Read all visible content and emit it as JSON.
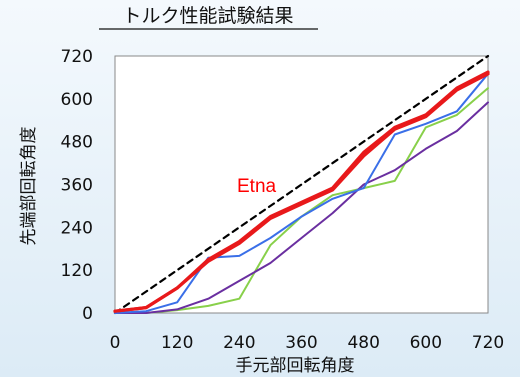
{
  "chart_data": {
    "type": "line",
    "title": "トルク性能試験結果",
    "xlabel": "手元部回転角度",
    "ylabel": "先端部回転角度",
    "xlim": [
      0,
      720
    ],
    "ylim": [
      0,
      720
    ],
    "xticks": [
      "0",
      "120",
      "240",
      "360",
      "480",
      "600",
      "720"
    ],
    "yticks": [
      "0",
      "120",
      "240",
      "360",
      "480",
      "600",
      "720"
    ],
    "grid": false,
    "annotation": "Etna",
    "series": [
      {
        "color": "#000000",
        "style": "dashed",
        "x": [
          0,
          720
        ],
        "y": [
          0,
          720
        ]
      },
      {
        "color": "#88d04a",
        "style": "solid",
        "x": [
          0,
          60,
          120,
          180,
          240,
          300,
          360,
          420,
          480,
          540,
          600,
          660,
          720
        ],
        "y": [
          0,
          0,
          8,
          20,
          40,
          190,
          270,
          330,
          350,
          370,
          520,
          555,
          630
        ]
      },
      {
        "color": "#6a2fa0",
        "style": "solid",
        "x": [
          0,
          60,
          120,
          180,
          240,
          300,
          360,
          420,
          480,
          540,
          600,
          660,
          720
        ],
        "y": [
          0,
          0,
          10,
          40,
          90,
          140,
          210,
          280,
          360,
          400,
          460,
          510,
          590
        ]
      },
      {
        "color": "#3a6fe8",
        "style": "solid",
        "x": [
          0,
          60,
          120,
          180,
          240,
          300,
          360,
          420,
          480,
          540,
          600,
          660,
          720
        ],
        "y": [
          0,
          5,
          30,
          155,
          160,
          210,
          270,
          320,
          350,
          500,
          530,
          565,
          670
        ]
      },
      {
        "color": "#e8191b",
        "style": "bold",
        "x": [
          0,
          60,
          120,
          180,
          240,
          300,
          360,
          420,
          480,
          540,
          600,
          660,
          720
        ],
        "y": [
          5,
          15,
          70,
          150,
          200,
          270,
          310,
          350,
          450,
          520,
          555,
          630,
          675
        ]
      },
      {
        "color": "#e8191b",
        "style": "bold",
        "x": [
          0,
          60,
          120,
          180,
          240,
          300,
          360,
          420,
          480,
          540,
          600,
          660,
          720
        ],
        "y": [
          5,
          15,
          70,
          145,
          195,
          265,
          305,
          345,
          440,
          515,
          550,
          625,
          670
        ]
      }
    ]
  }
}
